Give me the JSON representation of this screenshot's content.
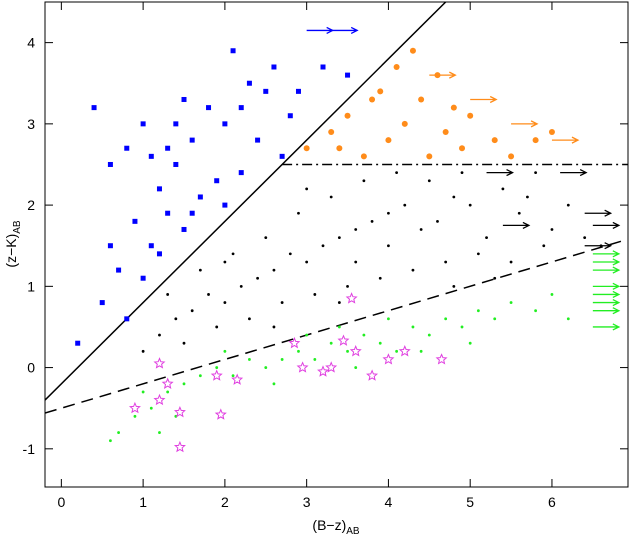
{
  "chart_data": {
    "type": "scatter",
    "x_label": "(B−z)",
    "x_label_sub": "AB",
    "y_label": "(z−K)",
    "y_label_sub": "AB",
    "xlim": [
      -0.2,
      6.93
    ],
    "ylim": [
      -1.47,
      4.5
    ],
    "xticks": [
      0,
      1,
      2,
      3,
      4,
      5,
      6
    ],
    "yticks": [
      -1,
      0,
      1,
      2,
      3,
      4
    ],
    "series": [
      {
        "marker": "square",
        "color": "#0000ff",
        "x": [
          0.4,
          0.6,
          0.8,
          1.0,
          1.2,
          1.4,
          1.5,
          1.6,
          1.8,
          2.0,
          2.1,
          2.3,
          2.5,
          2.6,
          2.8,
          0.9,
          1.1,
          1.3,
          1.7,
          1.9,
          2.2,
          0.5,
          0.7,
          1.0,
          0.2,
          1.2,
          1.5,
          2.4,
          2.7,
          1.4,
          1.1,
          2.9,
          3.2,
          3.5,
          0.8,
          1.6,
          2.0,
          0.6,
          1.3,
          2.2
        ],
        "y": [
          3.2,
          2.5,
          2.7,
          3.0,
          2.2,
          2.5,
          3.3,
          2.8,
          3.2,
          3.0,
          3.9,
          3.5,
          3.4,
          3.7,
          3.1,
          1.8,
          1.5,
          1.9,
          2.1,
          2.3,
          2.4,
          0.8,
          1.2,
          1.1,
          0.3,
          1.4,
          1.7,
          2.8,
          2.6,
          3.0,
          2.6,
          3.4,
          3.7,
          3.6,
          0.6,
          1.9,
          2.0,
          1.5,
          2.7,
          3.2
        ]
      },
      {
        "marker": "circle",
        "color": "#ff8c1a",
        "x": [
          3.0,
          3.3,
          3.5,
          3.7,
          3.9,
          4.0,
          4.2,
          4.4,
          4.5,
          4.1,
          3.8,
          4.7,
          4.9,
          5.0,
          5.3,
          5.5,
          4.6,
          3.4,
          4.3,
          5.8,
          6.0,
          4.8
        ],
        "y": [
          2.7,
          2.9,
          3.1,
          2.6,
          3.4,
          2.8,
          3.0,
          3.3,
          2.6,
          3.7,
          3.3,
          2.9,
          2.7,
          3.1,
          2.8,
          2.6,
          3.6,
          2.7,
          3.9,
          2.8,
          2.9,
          3.2
        ]
      },
      {
        "marker": "dot",
        "color": "#000000",
        "x": [
          1.2,
          1.4,
          1.6,
          1.8,
          2.0,
          2.2,
          2.4,
          2.6,
          2.8,
          3.0,
          3.2,
          3.4,
          3.6,
          3.8,
          4.0,
          4.2,
          4.4,
          4.6,
          4.8,
          5.0,
          5.2,
          5.4,
          5.6,
          5.8,
          6.0,
          6.2,
          1.5,
          1.9,
          2.3,
          2.7,
          3.1,
          3.5,
          3.9,
          4.3,
          4.7,
          5.1,
          5.5,
          5.9,
          2.5,
          2.9,
          3.3,
          3.7,
          4.1,
          4.5,
          4.9,
          1.7,
          2.1,
          3.0,
          1.3,
          2.6,
          3.4,
          4.8,
          5.3,
          6.4,
          1.0,
          3.6,
          4.0,
          2.0,
          5.7,
          6.6
        ],
        "y": [
          0.4,
          0.6,
          0.7,
          0.9,
          0.8,
          1.0,
          1.1,
          1.2,
          1.4,
          1.3,
          1.5,
          1.6,
          1.7,
          1.8,
          1.9,
          2.0,
          1.7,
          1.8,
          2.1,
          2.0,
          1.6,
          2.2,
          1.9,
          2.4,
          1.7,
          2.0,
          0.3,
          0.5,
          0.6,
          0.8,
          0.9,
          1.0,
          1.1,
          1.2,
          1.3,
          1.4,
          1.3,
          1.5,
          1.6,
          1.9,
          2.1,
          2.3,
          2.4,
          2.3,
          2.4,
          1.2,
          1.4,
          2.2,
          0.9,
          0.5,
          0.8,
          1.0,
          1.1,
          1.6,
          0.2,
          1.3,
          1.5,
          1.3,
          2.1,
          1.5
        ]
      },
      {
        "marker": "dot",
        "color": "#22ee22",
        "x": [
          0.7,
          0.9,
          1.1,
          1.3,
          1.5,
          1.7,
          1.9,
          2.1,
          2.3,
          2.5,
          2.7,
          2.9,
          3.1,
          3.3,
          3.5,
          3.7,
          3.9,
          4.1,
          4.3,
          4.5,
          4.7,
          4.9,
          5.1,
          5.3,
          5.5,
          5.8,
          6.0,
          6.2,
          0.6,
          1.0,
          1.4,
          2.0,
          2.6,
          3.0,
          3.6,
          4.0,
          4.4,
          5.0,
          1.2,
          3.4
        ],
        "y": [
          -0.8,
          -0.6,
          -0.5,
          -0.3,
          -0.2,
          -0.1,
          0.0,
          -0.1,
          0.1,
          0.0,
          0.1,
          0.2,
          0.1,
          0.3,
          0.2,
          0.4,
          0.3,
          0.2,
          0.5,
          0.4,
          0.6,
          0.5,
          0.7,
          0.6,
          0.8,
          0.7,
          0.9,
          0.6,
          -0.9,
          -0.3,
          -0.6,
          0.2,
          -0.2,
          0.4,
          0.0,
          0.6,
          0.2,
          0.3,
          -0.8,
          0.5
        ]
      },
      {
        "marker": "star",
        "color": "#e040e0",
        "x": [
          1.2,
          1.3,
          1.2,
          0.9,
          1.45,
          1.9,
          2.15,
          1.95,
          1.45,
          2.85,
          2.95,
          3.2,
          3.45,
          3.55,
          3.6,
          3.8,
          4.0,
          4.2,
          4.65,
          3.3
        ],
        "y": [
          0.05,
          -0.2,
          -0.4,
          -0.5,
          -0.55,
          -0.1,
          -0.15,
          -0.58,
          -0.98,
          0.3,
          0.0,
          -0.05,
          0.33,
          0.85,
          0.2,
          -0.1,
          0.1,
          0.2,
          0.1,
          0.0
        ]
      },
      {
        "marker": "arrow",
        "color": "#0000ff",
        "x": [
          3.0,
          3.3
        ],
        "y": [
          4.15,
          4.15
        ]
      },
      {
        "marker": "arrow",
        "color": "#ff8c1a",
        "x": [
          4.5,
          5.0,
          5.5,
          6.0
        ],
        "y": [
          3.6,
          3.3,
          3.0,
          2.8
        ]
      },
      {
        "marker": "arrow",
        "color": "#000000",
        "x": [
          5.2,
          6.1,
          5.4,
          6.4,
          6.5,
          6.4
        ],
        "y": [
          2.4,
          2.4,
          1.75,
          1.9,
          1.75,
          1.5
        ]
      },
      {
        "marker": "arrow",
        "color": "#22ee22",
        "x": [
          6.5,
          6.5,
          6.5,
          6.5,
          6.5,
          6.5,
          6.5,
          6.5
        ],
        "y": [
          1.4,
          1.3,
          1.2,
          1.0,
          0.9,
          0.8,
          0.7,
          0.5
        ]
      }
    ],
    "lines": [
      {
        "style": "solid",
        "x": [
          -0.2,
          4.7
        ],
        "y": [
          -0.4,
          4.5
        ]
      },
      {
        "style": "dashed",
        "x": [
          -0.2,
          6.93
        ],
        "y": [
          -0.56,
          1.58
        ]
      },
      {
        "style": "dashdot",
        "x": [
          2.7,
          6.93
        ],
        "y": [
          2.5,
          2.5
        ]
      }
    ]
  }
}
